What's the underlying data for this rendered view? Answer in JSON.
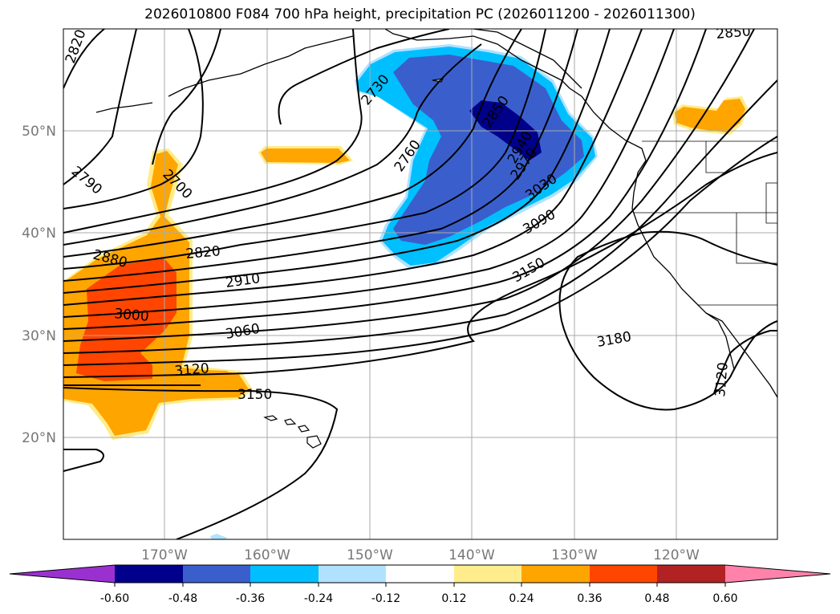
{
  "title": "2026010800 F084 700 hPa height, precipitation PC (2026011200 - 2026011300)",
  "lon_labels": [
    "170°W",
    "160°W",
    "150°W",
    "140°W",
    "130°W",
    "120°W"
  ],
  "lat_labels": [
    "50°N",
    "40°N",
    "30°N",
    "20°N"
  ],
  "contour_labels": [
    "2820",
    "2790",
    "2700",
    "2730",
    "2760",
    "2850",
    "2940",
    "2970",
    "3030",
    "3090",
    "3150",
    "2880",
    "2820",
    "2910",
    "3000",
    "3060",
    "3120",
    "3150",
    "3180",
    "3120",
    "2850"
  ],
  "colorbar": {
    "ticks": [
      "-0.60",
      "-0.48",
      "-0.36",
      "-0.24",
      "-0.12",
      "0.12",
      "0.24",
      "0.36",
      "0.48",
      "0.60"
    ],
    "colors": [
      "#9b30d0",
      "#00008b",
      "#3a5fcd",
      "#00bfff",
      "#b0e2ff",
      "#ffffff",
      "#ffec8b",
      "#ffa500",
      "#ff4500",
      "#b22222",
      "#ff82ab"
    ]
  },
  "colors": {
    "neg_strong": "#00008b",
    "neg_mid": "#3a5fcd",
    "neg_light": "#00bfff",
    "neg_faint": "#b0e2ff",
    "pos_faint": "#ffec8b",
    "pos_mid": "#ffa500",
    "pos_strong": "#ff4500"
  }
}
